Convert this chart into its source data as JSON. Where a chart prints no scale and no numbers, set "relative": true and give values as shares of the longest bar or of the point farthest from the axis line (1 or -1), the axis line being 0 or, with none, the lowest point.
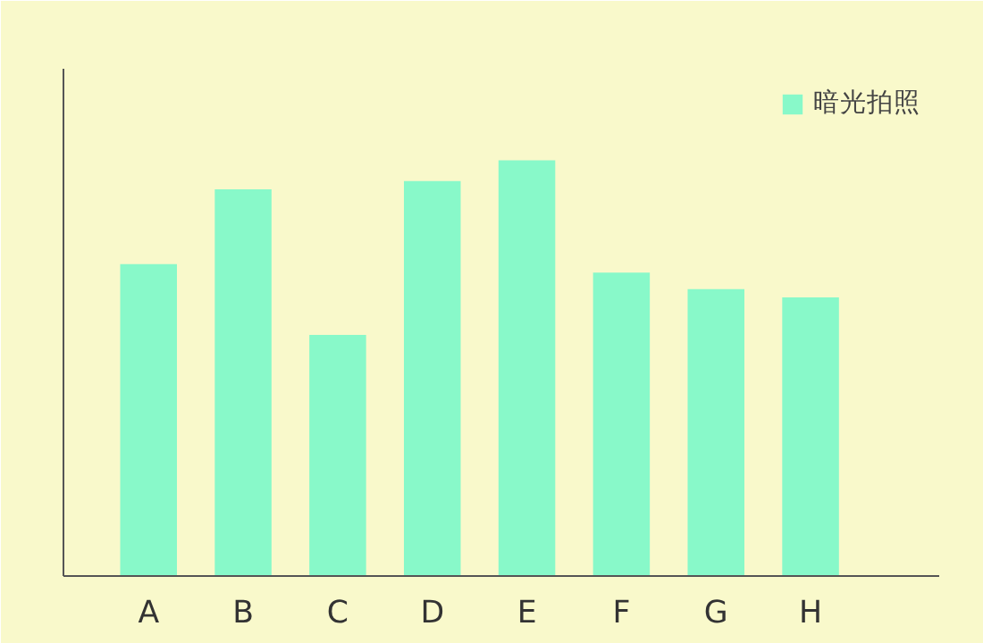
{
  "chart_data": {
    "type": "bar",
    "relative": true,
    "categories": [
      "A",
      "B",
      "C",
      "D",
      "E",
      "F",
      "G",
      "H"
    ],
    "series": [
      {
        "name": "暗光拍照",
        "color": "#88f9c9",
        "values": [
          0.75,
          0.93,
          0.58,
          0.95,
          1,
          0.73,
          0.69,
          0.67
        ]
      }
    ],
    "legend": "top right",
    "grid": false
  }
}
